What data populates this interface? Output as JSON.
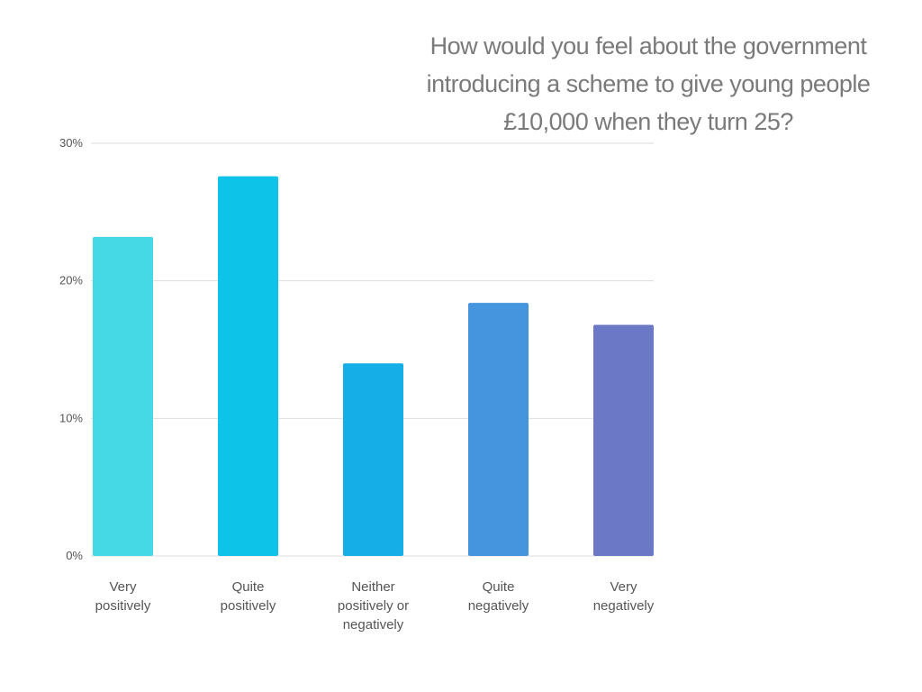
{
  "chart_data": {
    "type": "bar",
    "title_lines": [
      "How would you feel about the government",
      "introducing a scheme to give young people",
      "£10,000 when they turn 25?"
    ],
    "categories": [
      [
        "Very",
        "positively"
      ],
      [
        "Quite",
        "positively"
      ],
      [
        "Neither",
        "positively or",
        "negatively"
      ],
      [
        "Quite",
        "negatively"
      ],
      [
        "Very",
        "negatively"
      ]
    ],
    "values": [
      23.2,
      27.6,
      14.0,
      18.4,
      16.8
    ],
    "colors": [
      "#45d9e6",
      "#0dc4e8",
      "#16aee6",
      "#4594de",
      "#6b78c6"
    ],
    "ylim": [
      0,
      30
    ],
    "yticks": [
      0,
      10,
      20,
      30
    ],
    "ytick_labels": [
      "0%",
      "10%",
      "20%",
      "30%"
    ],
    "grid": true,
    "grid_color": "#dddddd",
    "xlabel": "",
    "ylabel": ""
  }
}
